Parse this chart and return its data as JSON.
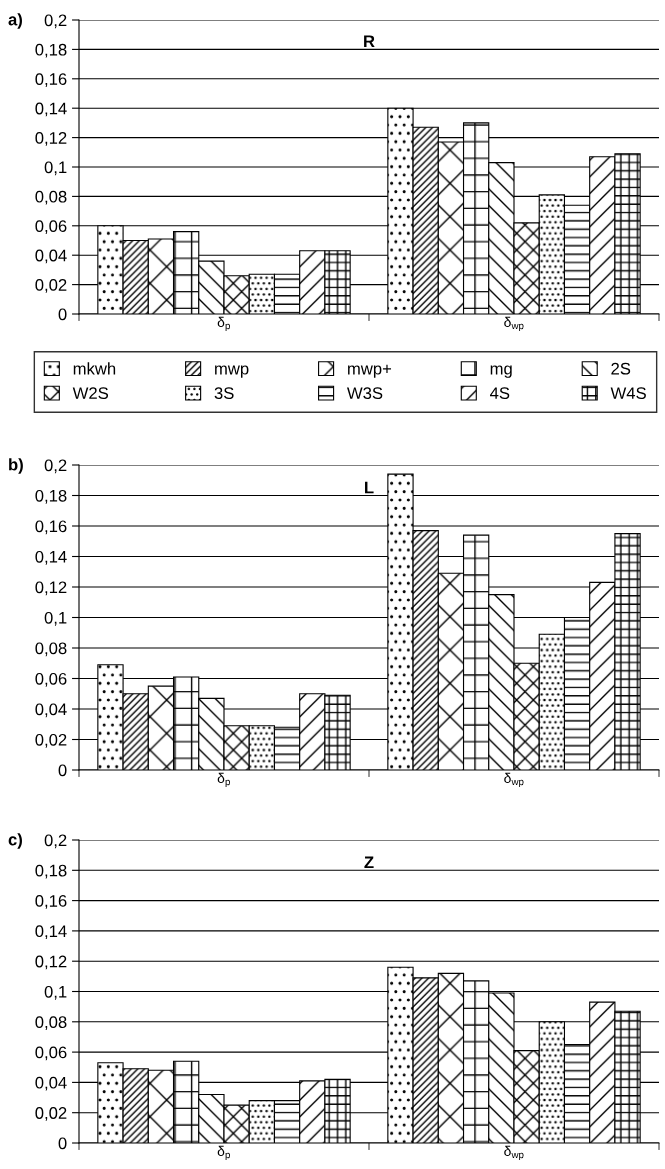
{
  "chart_data": [
    {
      "type": "bar",
      "title": "R",
      "annotations": [
        "a)"
      ],
      "categories": [
        "δ$_{p}$",
        "δ$_{wp}$"
      ],
      "ylim": [
        0,
        0.2
      ],
      "yticks": [
        {
          "value": 0,
          "label": "0"
        },
        {
          "value": 0.02,
          "label": "0,02"
        },
        {
          "value": 0.04,
          "label": "0,04"
        },
        {
          "value": 0.06,
          "label": "0,06"
        },
        {
          "value": 0.08,
          "label": "0,08"
        },
        {
          "value": 0.1,
          "label": "0,1"
        },
        {
          "value": 0.12,
          "label": "0,12"
        },
        {
          "value": 0.14,
          "label": "0,14"
        },
        {
          "value": 0.16,
          "label": "0,16"
        },
        {
          "value": 0.18,
          "label": "0,18"
        },
        {
          "value": 0.2,
          "label": "0,2"
        }
      ],
      "grid": "y",
      "legend": "bottom",
      "series": [
        {
          "name": "mkwh",
          "color": "#000000",
          "values": [
            0.06,
            0.14
          ]
        },
        {
          "name": "mwp",
          "color": "#000000",
          "values": [
            0.05,
            0.127
          ]
        },
        {
          "name": "mwp+",
          "color": "#000000",
          "values": [
            0.051,
            0.117
          ]
        },
        {
          "name": "mg",
          "color": "#000000",
          "values": [
            0.056,
            0.13
          ]
        },
        {
          "name": "2S",
          "color": "#000000",
          "values": [
            0.036,
            0.103
          ]
        },
        {
          "name": "W2S",
          "color": "#000000",
          "values": [
            0.026,
            0.062
          ]
        },
        {
          "name": "3S",
          "color": "#000000",
          "values": [
            0.027,
            0.081
          ]
        },
        {
          "name": "W3S",
          "color": "#000000",
          "values": [
            0.027,
            0.074
          ]
        },
        {
          "name": "4S",
          "color": "#000000",
          "values": [
            0.043,
            0.107
          ]
        },
        {
          "name": "W4S",
          "color": "#000000",
          "values": [
            0.043,
            0.109
          ]
        }
      ]
    },
    {
      "type": "bar",
      "title": "L",
      "annotations": [
        "b)"
      ],
      "categories": [
        "δ$_{p}$",
        "δ$_{wp}$"
      ],
      "ylim": [
        0,
        0.2
      ],
      "yticks": [
        {
          "value": 0,
          "label": "0"
        },
        {
          "value": 0.02,
          "label": "0,02"
        },
        {
          "value": 0.04,
          "label": "0,04"
        },
        {
          "value": 0.06,
          "label": "0,06"
        },
        {
          "value": 0.08,
          "label": "0,08"
        },
        {
          "value": 0.1,
          "label": "0,1"
        },
        {
          "value": 0.12,
          "label": "0,12"
        },
        {
          "value": 0.14,
          "label": "0,14"
        },
        {
          "value": 0.16,
          "label": "0,16"
        },
        {
          "value": 0.18,
          "label": "0,18"
        },
        {
          "value": 0.2,
          "label": "0,2"
        }
      ],
      "grid": "y",
      "series": [
        {
          "color": "#000000",
          "values": [
            0.069,
            0.194
          ]
        },
        {
          "color": "#000000",
          "values": [
            0.05,
            0.157
          ]
        },
        {
          "color": "#000000",
          "values": [
            0.055,
            0.129
          ]
        },
        {
          "color": "#000000",
          "values": [
            0.061,
            0.154
          ]
        },
        {
          "color": "#000000",
          "values": [
            0.047,
            0.115
          ]
        },
        {
          "color": "#000000",
          "values": [
            0.029,
            0.07
          ]
        },
        {
          "color": "#000000",
          "values": [
            0.029,
            0.089
          ]
        },
        {
          "color": "#000000",
          "values": [
            0.028,
            0.1
          ]
        },
        {
          "color": "#000000",
          "values": [
            0.05,
            0.123
          ]
        },
        {
          "color": "#000000",
          "values": [
            0.049,
            0.155
          ]
        }
      ]
    },
    {
      "type": "bar",
      "title": "Z",
      "annotations": [
        "c)"
      ],
      "categories": [
        "δ$_{p}$",
        "δ$_{wp}$"
      ],
      "ylim": [
        0,
        0.2
      ],
      "yticks": [
        {
          "value": 0,
          "label": "0"
        },
        {
          "value": 0.02,
          "label": "0,02"
        },
        {
          "value": 0.04,
          "label": "0,04"
        },
        {
          "value": 0.06,
          "label": "0,06"
        },
        {
          "value": 0.08,
          "label": "0,08"
        },
        {
          "value": 0.1,
          "label": "0,1"
        },
        {
          "value": 0.12,
          "label": "0,12"
        },
        {
          "value": 0.14,
          "label": "0,14"
        },
        {
          "value": 0.16,
          "label": "0,16"
        },
        {
          "value": 0.18,
          "label": "0,18"
        },
        {
          "value": 0.2,
          "label": "0,2"
        }
      ],
      "grid": "y",
      "series": [
        {
          "color": "#000000",
          "values": [
            0.053,
            0.116
          ]
        },
        {
          "color": "#000000",
          "values": [
            0.049,
            0.109
          ]
        },
        {
          "color": "#000000",
          "values": [
            0.048,
            0.112
          ]
        },
        {
          "color": "#000000",
          "values": [
            0.054,
            0.107
          ]
        },
        {
          "color": "#000000",
          "values": [
            0.032,
            0.099
          ]
        },
        {
          "color": "#000000",
          "values": [
            0.025,
            0.061
          ]
        },
        {
          "color": "#000000",
          "values": [
            0.028,
            0.08
          ]
        },
        {
          "color": "#000000",
          "values": [
            0.028,
            0.065
          ]
        },
        {
          "color": "#000000",
          "values": [
            0.041,
            0.093
          ]
        },
        {
          "color": "#000000",
          "values": [
            0.042,
            0.087
          ]
        }
      ]
    }
  ]
}
